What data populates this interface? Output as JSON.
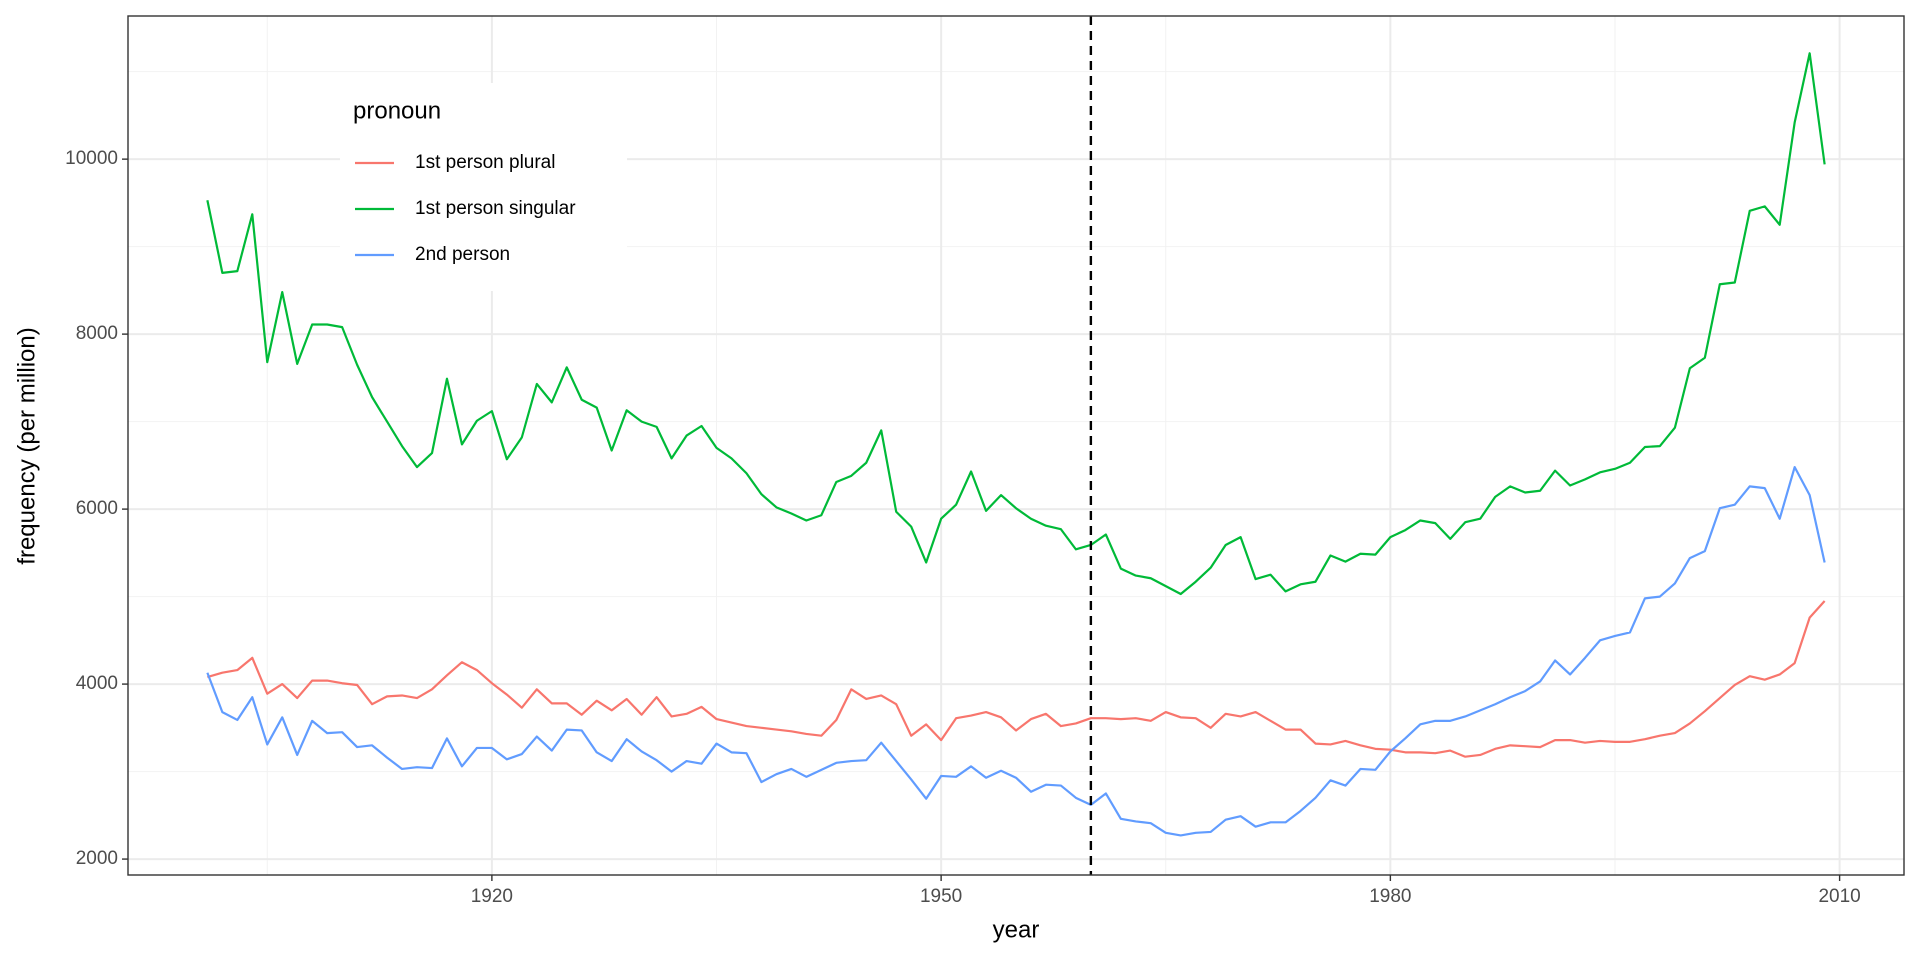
{
  "chart_data": {
    "type": "line",
    "xlabel": "year",
    "ylabel": "frequency (per million)",
    "legend_title": "pronoun",
    "legend": "top-left",
    "xlim": [
      1895.7,
      2014.3
    ],
    "ylim": [
      1818,
      11636
    ],
    "xticks": [
      1920,
      1950,
      1980,
      2010
    ],
    "yticks": [
      2000,
      4000,
      6000,
      8000,
      10000
    ],
    "grid": true,
    "vline": 1960,
    "x": [
      1901,
      1902,
      1903,
      1904,
      1905,
      1906,
      1907,
      1908,
      1909,
      1910,
      1911,
      1912,
      1913,
      1914,
      1915,
      1916,
      1917,
      1918,
      1919,
      1920,
      1921,
      1922,
      1923,
      1924,
      1925,
      1926,
      1927,
      1928,
      1929,
      1930,
      1931,
      1932,
      1933,
      1934,
      1935,
      1936,
      1937,
      1938,
      1939,
      1940,
      1941,
      1942,
      1943,
      1944,
      1945,
      1946,
      1947,
      1948,
      1949,
      1950,
      1951,
      1952,
      1953,
      1954,
      1955,
      1956,
      1957,
      1958,
      1959,
      1960,
      1961,
      1962,
      1963,
      1964,
      1965,
      1966,
      1967,
      1968,
      1969,
      1970,
      1971,
      1972,
      1973,
      1974,
      1975,
      1976,
      1977,
      1978,
      1979,
      1980,
      1981,
      1982,
      1983,
      1984,
      1985,
      1986,
      1987,
      1988,
      1989,
      1990,
      1991,
      1992,
      1993,
      1994,
      1995,
      1996,
      1997,
      1998,
      1999,
      2000,
      2001,
      2002,
      2003,
      2004,
      2005,
      2006,
      2007,
      2008,
      2009
    ],
    "series": [
      {
        "name": "1st person plural",
        "color": "#F8766D",
        "values": [
          4080,
          4130,
          4160,
          4300,
          3890,
          4000,
          3840,
          4040,
          4040,
          4010,
          3990,
          3770,
          3860,
          3870,
          3840,
          3940,
          4100,
          4250,
          4160,
          4010,
          3880,
          3730,
          3940,
          3780,
          3780,
          3650,
          3810,
          3700,
          3830,
          3650,
          3850,
          3630,
          3660,
          3740,
          3600,
          3560,
          3520,
          3500,
          3480,
          3460,
          3430,
          3410,
          3590,
          3940,
          3830,
          3870,
          3770,
          3410,
          3540,
          3360,
          3610,
          3640,
          3680,
          3620,
          3470,
          3600,
          3660,
          3520,
          3550,
          3610,
          3610,
          3600,
          3610,
          3580,
          3680,
          3620,
          3610,
          3500,
          3660,
          3630,
          3680,
          3580,
          3480,
          3480,
          3320,
          3310,
          3350,
          3300,
          3260,
          3250,
          3220,
          3220,
          3210,
          3240,
          3170,
          3190,
          3260,
          3300,
          3290,
          3280,
          3360,
          3360,
          3330,
          3350,
          3340,
          3340,
          3370,
          3410,
          3440,
          3550,
          3690,
          3840,
          3990,
          4090,
          4050,
          4110,
          4240,
          4760,
          4950
        ]
      },
      {
        "name": "1st person singular",
        "color": "#00BA38",
        "values": [
          9530,
          8700,
          8720,
          9370,
          7680,
          8480,
          7660,
          8110,
          8110,
          8080,
          7650,
          7280,
          7000,
          6720,
          6480,
          6640,
          7490,
          6740,
          7010,
          7120,
          6570,
          6820,
          7430,
          7220,
          7620,
          7250,
          7160,
          6670,
          7130,
          7000,
          6940,
          6580,
          6840,
          6950,
          6700,
          6580,
          6410,
          6170,
          6020,
          5950,
          5870,
          5930,
          6310,
          6380,
          6530,
          6900,
          5970,
          5800,
          5390,
          5890,
          6050,
          6430,
          5980,
          6160,
          6010,
          5890,
          5810,
          5770,
          5540,
          5590,
          5710,
          5320,
          5240,
          5210,
          5120,
          5030,
          5170,
          5330,
          5590,
          5680,
          5200,
          5250,
          5060,
          5140,
          5170,
          5470,
          5400,
          5490,
          5480,
          5680,
          5760,
          5870,
          5840,
          5660,
          5850,
          5890,
          6140,
          6260,
          6190,
          6210,
          6440,
          6270,
          6340,
          6420,
          6460,
          6530,
          6710,
          6720,
          6930,
          7610,
          7730,
          8570,
          8590,
          9410,
          9460,
          9250,
          10420,
          11210,
          9940
        ]
      },
      {
        "name": "2nd person",
        "color": "#619CFF",
        "values": [
          4130,
          3680,
          3590,
          3850,
          3310,
          3620,
          3190,
          3580,
          3440,
          3450,
          3280,
          3300,
          3160,
          3030,
          3050,
          3040,
          3380,
          3060,
          3270,
          3270,
          3140,
          3200,
          3400,
          3240,
          3480,
          3470,
          3220,
          3120,
          3370,
          3230,
          3130,
          3000,
          3120,
          3090,
          3320,
          3220,
          3210,
          2880,
          2970,
          3030,
          2940,
          3020,
          3100,
          3120,
          3130,
          3330,
          3120,
          2910,
          2690,
          2950,
          2940,
          3060,
          2930,
          3010,
          2930,
          2770,
          2850,
          2840,
          2700,
          2620,
          2750,
          2460,
          2430,
          2410,
          2300,
          2270,
          2300,
          2310,
          2450,
          2490,
          2370,
          2420,
          2420,
          2550,
          2700,
          2900,
          2840,
          3030,
          3020,
          3230,
          3380,
          3540,
          3580,
          3580,
          3630,
          3700,
          3770,
          3850,
          3920,
          4030,
          4270,
          4110,
          4300,
          4500,
          4550,
          4590,
          4980,
          5000,
          5150,
          5440,
          5520,
          6010,
          6050,
          6260,
          6240,
          5890,
          6480,
          6160,
          5390
        ]
      }
    ]
  }
}
